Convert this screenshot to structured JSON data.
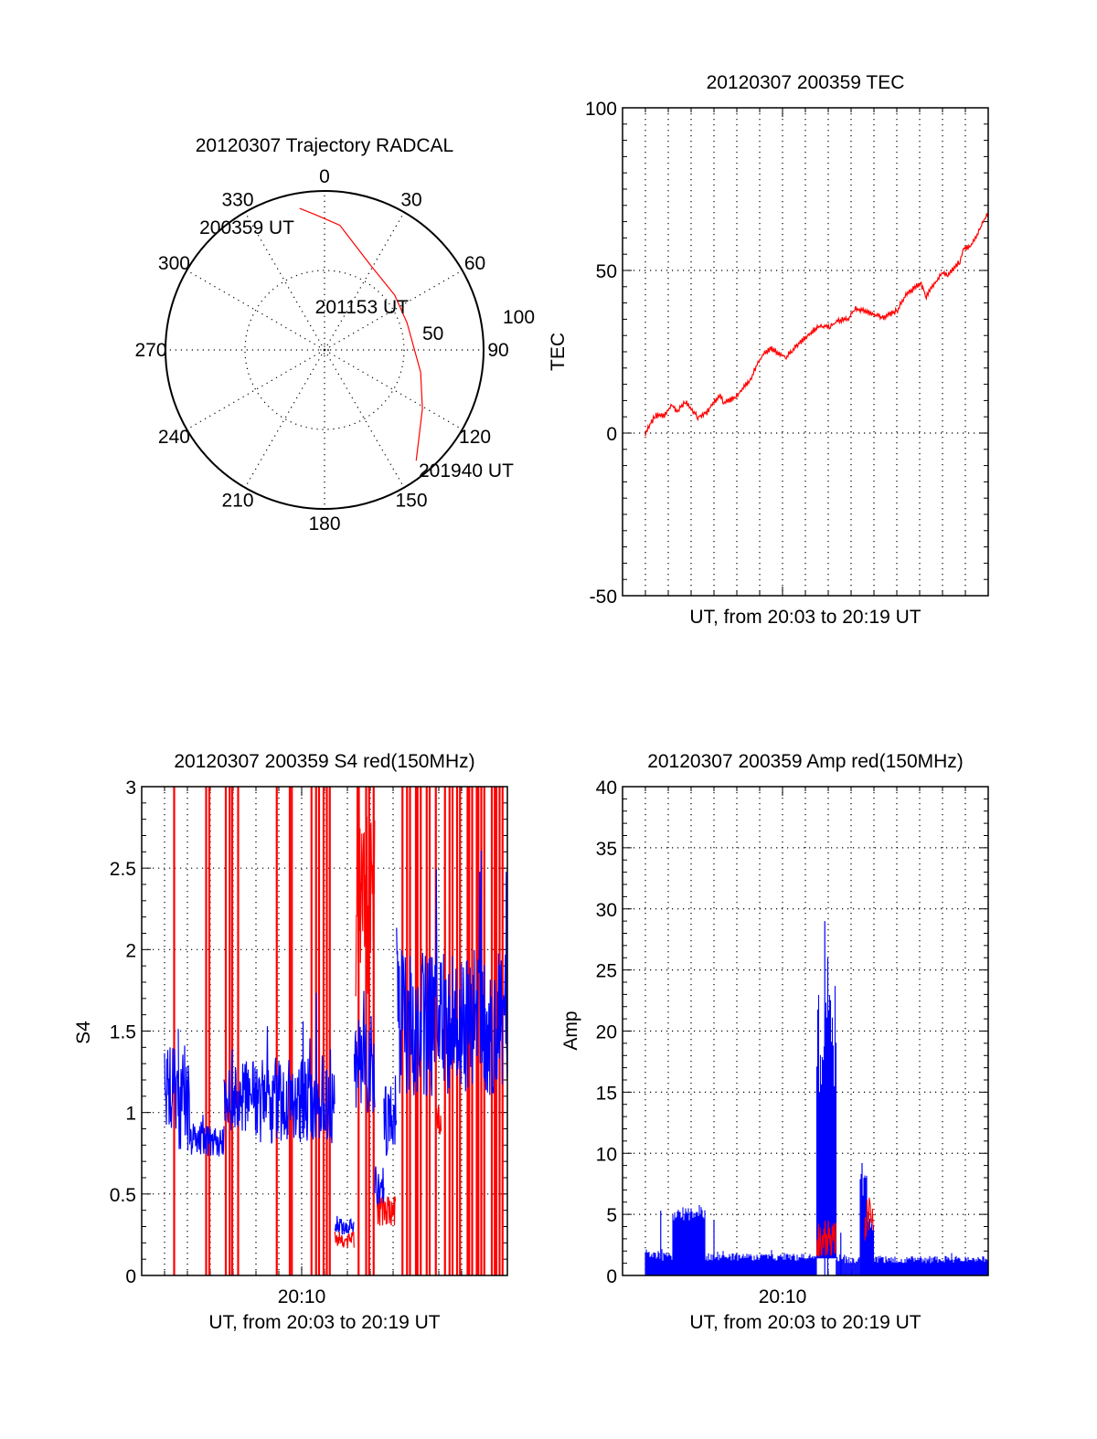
{
  "colors": {
    "red": "#ff0000",
    "blue": "#0000ff",
    "axis": "#000000"
  },
  "chart_data": [
    {
      "id": "polar",
      "type": "scatter",
      "subtype": "polar-trajectory",
      "title": "20120307 Trajectory RADCAL",
      "angle_labels": [
        "0",
        "30",
        "60",
        "90",
        "120",
        "150",
        "180",
        "210",
        "240",
        "270",
        "300",
        "330"
      ],
      "radial_labels": [
        "50",
        "100"
      ],
      "radial_range": [
        0,
        100
      ],
      "trajectory_az_r": [
        [
          350,
          90.4
        ],
        [
          356,
          85.4
        ],
        [
          7,
          79
        ],
        [
          28.4,
          60.7
        ],
        [
          52,
          56
        ],
        [
          72,
          54.6
        ],
        [
          103,
          62
        ],
        [
          121,
          71.8
        ],
        [
          140.4,
          90.4
        ]
      ],
      "time_labels": [
        "200359 UT",
        "201153 UT",
        "201940 UT"
      ]
    },
    {
      "id": "tec",
      "type": "line",
      "title": "20120307 200359 TEC",
      "xlabel": "UT, from 20:03 to 20:19 UT",
      "ylabel": "TEC",
      "xlim_minutes_after_20h": [
        3,
        19
      ],
      "ylim": [
        -50,
        100
      ],
      "ytick_labels": [
        "-50",
        "0",
        "50",
        "100"
      ],
      "grid": true,
      "series": [
        {
          "name": "TEC",
          "color": "#ff0000",
          "points": [
            [
              4.0,
              0
            ],
            [
              4.43,
              5.4
            ],
            [
              4.83,
              5.4
            ],
            [
              5.16,
              8.5
            ],
            [
              5.39,
              6.7
            ],
            [
              5.76,
              9.5
            ],
            [
              6.29,
              4.9
            ],
            [
              6.69,
              6.4
            ],
            [
              7.23,
              11.6
            ],
            [
              7.43,
              9.5
            ],
            [
              7.96,
              11.0
            ],
            [
              8.56,
              16.2
            ],
            [
              9.09,
              23.9
            ],
            [
              9.49,
              26.0
            ],
            [
              10.16,
              23.4
            ],
            [
              10.43,
              25.5
            ],
            [
              11.09,
              30.1
            ],
            [
              11.56,
              32.7
            ],
            [
              12.09,
              32.7
            ],
            [
              12.49,
              34.8
            ],
            [
              12.89,
              34.8
            ],
            [
              13.16,
              38.4
            ],
            [
              13.89,
              36.8
            ],
            [
              14.43,
              35.3
            ],
            [
              15.03,
              37.9
            ],
            [
              15.36,
              42.0
            ],
            [
              16.03,
              46.3
            ],
            [
              16.29,
              42.0
            ],
            [
              16.96,
              49.2
            ],
            [
              17.23,
              48.4
            ],
            [
              17.76,
              52.8
            ],
            [
              17.89,
              56.4
            ],
            [
              18.23,
              57.5
            ],
            [
              18.63,
              62.6
            ],
            [
              18.89,
              66.7
            ],
            [
              19.0,
              67.8
            ]
          ]
        }
      ]
    },
    {
      "id": "s4",
      "type": "line",
      "title": "20120307 200359 S4 red(150MHz)",
      "xlabel": "UT, from 20:03 to 20:19 UT",
      "ylabel": "S4",
      "xtick_label": "20:10",
      "xlim_minutes_after_20h": [
        3,
        19
      ],
      "ylim": [
        0,
        3
      ],
      "ytick_labels": [
        "0",
        "0.5",
        "1",
        "1.5",
        "2",
        "2.5",
        "3"
      ],
      "grid": true,
      "blue_segments_t0_t1_mean_spread": [
        [
          4.0,
          4.6,
          1.15,
          0.25
        ],
        [
          4.6,
          5.1,
          1.1,
          0.35
        ],
        [
          5.1,
          6.6,
          0.82,
          0.1
        ],
        [
          6.6,
          8.0,
          1.1,
          0.22
        ],
        [
          8.0,
          11.45,
          1.08,
          0.27
        ],
        [
          11.45,
          12.3,
          0.3,
          0.05
        ],
        [
          12.3,
          13.2,
          1.3,
          0.3
        ],
        [
          13.2,
          13.6,
          0.55,
          0.12
        ],
        [
          13.6,
          14.15,
          0.95,
          0.25
        ],
        [
          14.15,
          19.0,
          1.55,
          0.45
        ]
      ],
      "red_segments_t0_t1_mean_spread": [
        [
          11.45,
          12.3,
          0.22,
          0.05
        ],
        [
          12.35,
          13.2,
          2.3,
          0.6
        ],
        [
          13.3,
          14.1,
          0.4,
          0.1
        ],
        [
          15.9,
          16.1,
          0.95,
          0.1
        ]
      ],
      "red_full_spikes_t": [
        4.42,
        5.82,
        5.96,
        6.68,
        6.85,
        6.96,
        7.22,
        8.91,
        9.48,
        9.57,
        10.43,
        10.63,
        10.76,
        10.96,
        11.1,
        11.23,
        12.49,
        12.82,
        12.95,
        13.15,
        14.41,
        14.61,
        14.74,
        15.0,
        15.07,
        15.21,
        15.47,
        15.6,
        15.87,
        16.27,
        16.47,
        16.6,
        16.8,
        16.93,
        17.26,
        17.33,
        17.46,
        17.66,
        17.73,
        17.86,
        17.99,
        18.32,
        18.45,
        18.52,
        18.66,
        18.79
      ]
    },
    {
      "id": "amp",
      "type": "bar",
      "title": "20120307 200359 Amp red(150MHz)",
      "xlabel": "UT, from 20:03 to 20:19 UT",
      "ylabel": "Amp",
      "xtick_label": "20:10",
      "xlim_minutes_after_20h": [
        3,
        19
      ],
      "ylim": [
        0,
        40
      ],
      "ytick_labels": [
        "0",
        "5",
        "10",
        "15",
        "20",
        "25",
        "30",
        "35",
        "40"
      ],
      "grid": true,
      "blue_segments_t0_t1_mean_spread_base": [
        [
          4.0,
          5.2,
          1.6,
          0.4,
          0
        ],
        [
          5.2,
          6.6,
          5.0,
          0.6,
          0
        ],
        [
          6.6,
          11.5,
          1.5,
          0.3,
          0
        ],
        [
          11.5,
          12.35,
          19,
          4,
          1.4
        ],
        [
          12.35,
          13.4,
          1.3,
          0.3,
          0
        ],
        [
          13.4,
          13.7,
          7.5,
          1.2,
          0
        ],
        [
          13.7,
          14.0,
          4.5,
          0.8,
          0
        ],
        [
          14.0,
          19.0,
          1.3,
          0.3,
          0
        ]
      ],
      "blue_spikes_t_value": [
        [
          4.67,
          5.3
        ],
        [
          7.0,
          4.5
        ],
        [
          11.85,
          29
        ],
        [
          11.98,
          26
        ],
        [
          12.55,
          3.5
        ],
        [
          13.48,
          9.2
        ]
      ],
      "red_segments_t0_t1_mean_spread": [
        [
          11.5,
          12.35,
          3,
          1
        ],
        [
          13.6,
          14.0,
          4.5,
          1.2
        ]
      ]
    }
  ]
}
